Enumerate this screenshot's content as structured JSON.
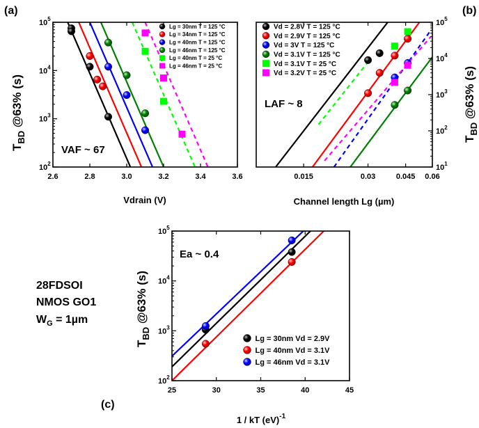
{
  "panels": {
    "a": "(a)",
    "b": "(b)",
    "c": "(c)"
  },
  "device_label": [
    "28FDSOI",
    "NMOS GO1"
  ],
  "device_width": {
    "text": "W",
    "sub": "G",
    "rest": " = 1µm"
  },
  "y_axis": {
    "main": "T",
    "sub": "BD",
    "rest": " @63% (s)"
  },
  "chart_data": [
    {
      "id": "a",
      "type": "scatter",
      "xlabel": "Vdrain (V)",
      "x_ticks": [
        "2.6",
        "2.8",
        "3.0",
        "3.2",
        "3.4",
        "3.6"
      ],
      "y_ticks": [
        "10^2",
        "10^3",
        "10^4",
        "10^5"
      ],
      "xlim": [
        2.6,
        3.6
      ],
      "ylim": [
        100,
        100000
      ],
      "yscale": "log",
      "annotation": "VAF ~ 67",
      "legend_position": "top-right",
      "series": [
        {
          "name": "Lg = 30nm T = 125 °C",
          "color": "#000000",
          "marker": "ball",
          "line": "solid",
          "points": [
            [
              2.7,
              75000
            ],
            [
              2.7,
              65000
            ],
            [
              2.8,
              12000
            ],
            [
              2.9,
              1100
            ]
          ],
          "fit": [
            [
              2.68,
              100000
            ],
            [
              3.02,
              100
            ]
          ]
        },
        {
          "name": "Lg = 34nm T = 125 °C",
          "color": "#ff0000",
          "marker": "ball",
          "line": "solid",
          "points": [
            [
              2.8,
              20000
            ],
            [
              2.84,
              6500
            ],
            [
              2.87,
              4700
            ]
          ],
          "fit": [
            [
              2.74,
              100000
            ],
            [
              3.08,
              100
            ]
          ]
        },
        {
          "name": "Lg = 40nm T = 125 °C",
          "color": "#0000ff",
          "marker": "ball",
          "line": "solid",
          "points": [
            [
              2.9,
              12000
            ],
            [
              3.0,
              3100
            ],
            [
              3.1,
              580
            ]
          ],
          "fit": [
            [
              2.8,
              100000
            ],
            [
              3.14,
              100
            ]
          ]
        },
        {
          "name": "Lg = 46nm T = 125 °C",
          "color": "#008000",
          "marker": "ball",
          "line": "solid",
          "points": [
            [
              2.9,
              38000
            ],
            [
              3.0,
              8000
            ],
            [
              3.1,
              1300
            ]
          ],
          "fit": [
            [
              2.86,
              100000
            ],
            [
              3.2,
              100
            ]
          ]
        },
        {
          "name": "Lg = 40nm T = 25 °C",
          "color": "#00ff00",
          "marker": "square",
          "line": "dash",
          "points": [
            [
              3.1,
              25000
            ],
            [
              3.2,
              2300
            ]
          ],
          "fit": [
            [
              3.03,
              100000
            ],
            [
              3.37,
              100
            ]
          ]
        },
        {
          "name": "Lg = 46nm T = 25 °C",
          "color": "#ff00ff",
          "marker": "square",
          "line": "dash",
          "points": [
            [
              3.1,
              60000
            ],
            [
              3.2,
              7000
            ],
            [
              3.3,
              480
            ]
          ],
          "fit": [
            [
              3.1,
              100000
            ],
            [
              3.44,
              100
            ]
          ]
        }
      ]
    },
    {
      "id": "b",
      "type": "scatter",
      "xlabel": "Channel length Lg (µm)",
      "x_ticks": [
        "0.015",
        "0.03",
        "0.045",
        "0.06"
      ],
      "y_ticks": [
        "10^1",
        "10^2",
        "10^3",
        "10^4",
        "10^5"
      ],
      "xlim": [
        0.009,
        0.06
      ],
      "xscale": "log",
      "ylim": [
        10,
        100000
      ],
      "yscale": "log",
      "annotation": "LAF ~ 8",
      "legend_position": "top-left",
      "series": [
        {
          "name": "Vd = 2.8V T = 125 °C",
          "color": "#000000",
          "marker": "ball",
          "line": "solid",
          "points": [
            [
              0.03,
              9000
            ],
            [
              0.034,
              14000
            ]
          ],
          "fit": [
            [
              0.0111,
              10
            ],
            [
              0.0371,
              100000
            ]
          ]
        },
        {
          "name": "Vd = 2.9V T = 125 °C",
          "color": "#ff0000",
          "marker": "ball",
          "line": "solid",
          "points": [
            [
              0.03,
              1100
            ],
            [
              0.034,
              4000
            ],
            [
              0.04,
              12000
            ],
            [
              0.046,
              35000
            ]
          ],
          "fit": [
            [
              0.0165,
              10
            ],
            [
              0.0522,
              100000
            ]
          ]
        },
        {
          "name": "Vd = 3V T = 125 °C",
          "color": "#0000ff",
          "marker": "ball",
          "line": "dash",
          "points": [
            [
              0.04,
              3000
            ],
            [
              0.046,
              7500
            ]
          ],
          "fit": [
            [
              0.0208,
              10
            ],
            [
              0.059,
              60000
            ]
          ]
        },
        {
          "name": "Vd = 3.1V T = 125 °C",
          "color": "#008000",
          "marker": "ball",
          "line": "solid",
          "points": [
            [
              0.04,
              520
            ],
            [
              0.046,
              1300
            ]
          ],
          "fit": [
            [
              0.0248,
              10
            ],
            [
              0.06,
              11000
            ]
          ]
        },
        {
          "name": "Vd = 3.1V T = 25 °C",
          "color": "#00ff00",
          "marker": "square",
          "line": "dash",
          "points": [
            [
              0.04,
              22000
            ],
            [
              0.046,
              55000
            ]
          ],
          "fit": [
            [
              0.0176,
              150
            ],
            [
              0.03,
              8000
            ]
          ]
        },
        {
          "name": "Vd = 3.2V T = 25 °C",
          "color": "#ff00ff",
          "marker": "square",
          "line": "dash",
          "points": [
            [
              0.04,
              2200
            ],
            [
              0.046,
              6500
            ]
          ],
          "fit": [
            [
              0.0188,
              15
            ],
            [
              0.059,
              40000
            ]
          ]
        }
      ]
    },
    {
      "id": "c",
      "type": "scatter",
      "xlabel": {
        "main": "1 / kT (eV)",
        "sup": "-1"
      },
      "x_ticks": [
        "25",
        "30",
        "35",
        "40",
        "45"
      ],
      "y_ticks": [
        "10^2",
        "10^3",
        "10^4",
        "10^5"
      ],
      "xlim": [
        25,
        45
      ],
      "ylim": [
        100,
        100000
      ],
      "yscale": "log",
      "annotation": "Ea ~ 0.4",
      "legend_position": "bottom-right",
      "series": [
        {
          "name": "Lg = 30nm Vd = 2.9V",
          "color": "#000000",
          "marker": "ball",
          "line": "solid",
          "points": [
            [
              28.8,
              1050
            ],
            [
              38.5,
              38000
            ]
          ],
          "fit": [
            [
              25,
              190
            ],
            [
              40.6,
              100000
            ]
          ]
        },
        {
          "name": "Lg = 40nm Vd = 3.1V",
          "color": "#ff0000",
          "marker": "ball",
          "line": "solid",
          "points": [
            [
              28.8,
              550
            ],
            [
              38.5,
              24000
            ]
          ],
          "fit": [
            [
              25,
              100
            ],
            [
              42.1,
              100000
            ]
          ]
        },
        {
          "name": "Lg = 46nm Vd = 3.1V",
          "color": "#0000ff",
          "marker": "ball",
          "line": "solid",
          "points": [
            [
              28.8,
              1250
            ],
            [
              38.5,
              65000
            ]
          ],
          "fit": [
            [
              25,
              310
            ],
            [
              39.8,
              100000
            ]
          ]
        }
      ]
    }
  ]
}
